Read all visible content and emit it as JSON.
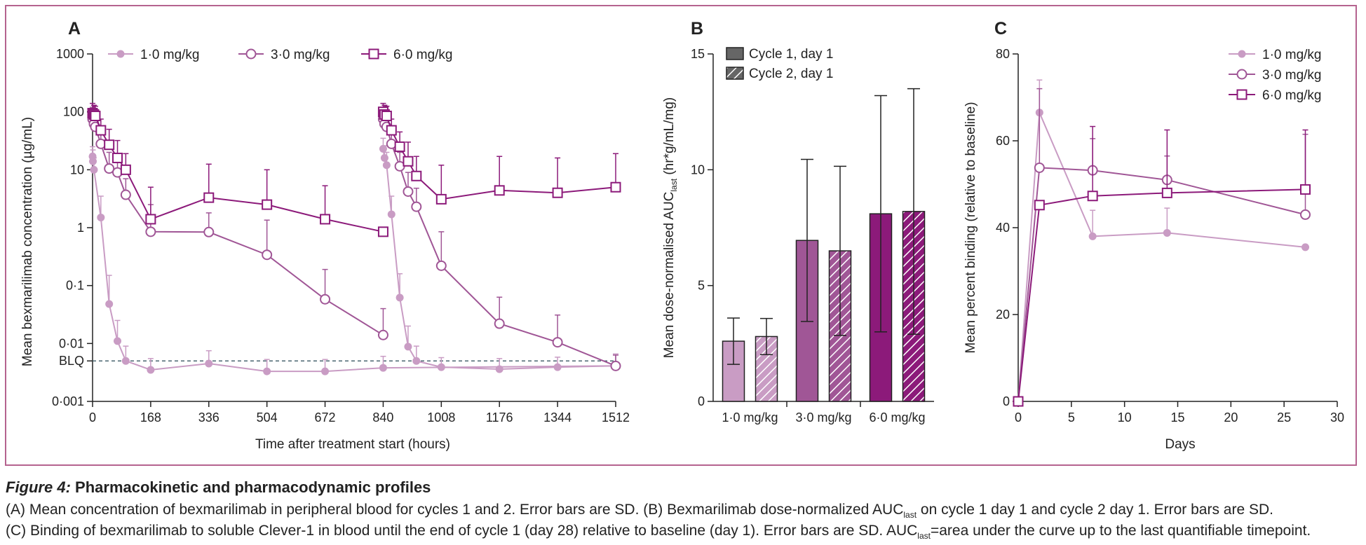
{
  "colors": {
    "light": "#c99cc4",
    "medium": "#a05696",
    "dark": "#8c1a7a",
    "frame": "#b5638f",
    "blq_line": "#4a6670",
    "text": "#222222"
  },
  "caption": {
    "figure_label": "Figure 4:",
    "figure_title": "Pharmacokinetic and pharmacodynamic profiles",
    "line1_a": "(A) Mean concentration of bexmarilimab in peripheral blood for cycles 1 and 2. Error bars are SD. (B) Bexmarilimab dose-normalized AUC",
    "line1_sub": "last",
    "line1_b": " on cycle 1 day 1 and cycle 2 day 1. Error bars are SD.",
    "line2_a": "(C) Binding of bexmarilimab to soluble Clever-1 in blood until the end of cycle 1 (day 28) relative to baseline (day 1). Error bars are SD. AUC",
    "line2_sub": "last",
    "line2_b": "=area under the curve up to the last quantifiable timepoint."
  },
  "chart_data": [
    {
      "panel": "A",
      "type": "line",
      "xlabel": "Time after treatment start (hours)",
      "ylabel": "Mean bexmarilimab concentration (µg/mL)",
      "yscale": "log",
      "xlim": [
        0,
        1512
      ],
      "ylim": [
        0.001,
        1000
      ],
      "x_ticks": [
        0,
        168,
        336,
        504,
        672,
        840,
        1008,
        1176,
        1344,
        1512
      ],
      "y_ticks": [
        {
          "value": 1000,
          "label": "1000"
        },
        {
          "value": 100,
          "label": "100"
        },
        {
          "value": 10,
          "label": "10"
        },
        {
          "value": 1,
          "label": "1"
        },
        {
          "value": 0.1,
          "label": "0·1"
        },
        {
          "value": 0.01,
          "label": "0·01"
        },
        {
          "value": 0.005,
          "label": "BLQ"
        },
        {
          "value": 0.001,
          "label": "0·001"
        }
      ],
      "x_tick_labels": [
        "0",
        "168",
        "336",
        "504",
        "672",
        "840",
        "1008",
        "1176",
        "1344",
        "1512"
      ],
      "blq_value": 0.005,
      "legend_position": "top",
      "series": [
        {
          "name": "1·0 mg/kg",
          "marker": "filled-circle",
          "color_key": "light",
          "segments": [
            [
              [
                0,
                17,
                25
              ],
              [
                1,
                14,
                22
              ],
              [
                4,
                10,
                16
              ],
              [
                24,
                1.5,
                3.5
              ],
              [
                48,
                0.048,
                0.15
              ],
              [
                72,
                0.011,
                0.025
              ],
              [
                96,
                0.005,
                0.009
              ],
              [
                168,
                0.0035,
                0.0055
              ],
              [
                336,
                0.0045,
                0.0075
              ],
              [
                504,
                0.0033,
                0.0053
              ],
              [
                672,
                0.0033,
                0.0053
              ],
              [
                840,
                0.0038,
                0.006
              ],
              [
                1512,
                0.0041,
                0.0066
              ]
            ],
            [
              [
                840,
                23,
                35
              ],
              [
                844,
                16,
                26
              ],
              [
                850,
                12,
                20
              ],
              [
                864,
                1.7,
                3.5
              ],
              [
                888,
                0.062,
                0.16
              ],
              [
                912,
                0.0088,
                0.02
              ],
              [
                936,
                0.005,
                0.009
              ],
              [
                1008,
                0.0039,
                0.0057
              ],
              [
                1176,
                0.0036,
                0.0055
              ],
              [
                1344,
                0.0039,
                0.0058
              ],
              [
                1512,
                0.0041,
                0.0066
              ]
            ]
          ]
        },
        {
          "name": "3·0 mg/kg",
          "marker": "open-circle",
          "color_key": "medium",
          "segments": [
            [
              [
                0,
                75,
                120
              ],
              [
                4,
                62,
                100
              ],
              [
                8,
                55,
                85
              ],
              [
                24,
                28,
                45
              ],
              [
                48,
                10.5,
                20
              ],
              [
                72,
                9,
                16
              ],
              [
                96,
                3.7,
                7
              ],
              [
                168,
                0.85,
                2.5
              ],
              [
                336,
                0.84,
                1.8
              ],
              [
                504,
                0.34,
                1.35
              ],
              [
                672,
                0.058,
                0.19
              ],
              [
                840,
                0.014,
                0.04
              ]
            ],
            [
              [
                840,
                75,
                120
              ],
              [
                844,
                62,
                100
              ],
              [
                850,
                55,
                85
              ],
              [
                864,
                28,
                45
              ],
              [
                888,
                11.5,
                20
              ],
              [
                912,
                4.2,
                9
              ],
              [
                936,
                2.3,
                4.8
              ],
              [
                1008,
                0.22,
                0.85
              ],
              [
                1176,
                0.022,
                0.063
              ],
              [
                1344,
                0.0105,
                0.031
              ],
              [
                1512,
                0.0041,
                0.0063
              ]
            ]
          ]
        },
        {
          "name": "6·0 mg/kg",
          "marker": "open-square",
          "color_key": "dark",
          "segments": [
            [
              [
                0,
                95,
                140
              ],
              [
                4,
                90,
                130
              ],
              [
                8,
                85,
                125
              ],
              [
                24,
                48,
                75
              ],
              [
                48,
                27,
                50
              ],
              [
                72,
                16,
                32
              ],
              [
                96,
                10,
                19
              ],
              [
                168,
                1.4,
                5
              ],
              [
                336,
                3.3,
                12.5
              ],
              [
                504,
                2.5,
                10
              ],
              [
                672,
                1.4,
                5.3
              ],
              [
                840,
                0.85,
                null
              ]
            ],
            [
              [
                840,
                100,
                140
              ],
              [
                844,
                90,
                130
              ],
              [
                850,
                85,
                125
              ],
              [
                864,
                48,
                75
              ],
              [
                888,
                25,
                45
              ],
              [
                912,
                14,
                30
              ],
              [
                936,
                7.8,
                17
              ],
              [
                1008,
                3.1,
                12
              ],
              [
                1176,
                4.4,
                17
              ],
              [
                1344,
                4.0,
                16
              ],
              [
                1512,
                5.0,
                19
              ]
            ]
          ]
        }
      ]
    },
    {
      "panel": "B",
      "type": "bar",
      "ylabel": "Mean dose-normalised AUC",
      "ylabel_sub": "last",
      "ylabel_tail": " (hr*g/mL/mg)",
      "ylim": [
        0,
        15
      ],
      "y_ticks": [
        0,
        5,
        10,
        15
      ],
      "categories": [
        "1·0 mg/kg",
        "3·0 mg/kg",
        "6·0 mg/kg"
      ],
      "legend_position": "top-left",
      "series": [
        {
          "name": "Cycle 1, day 1",
          "pattern": "solid",
          "values": [
            2.6,
            6.95,
            8.1
          ],
          "sd": [
            1.0,
            3.5,
            5.1
          ]
        },
        {
          "name": "Cycle 2, day 1",
          "pattern": "hatched",
          "values": [
            2.8,
            6.5,
            8.2
          ],
          "sd": [
            0.78,
            3.65,
            5.3
          ]
        }
      ],
      "bar_color_keys": [
        "light",
        "medium",
        "dark"
      ]
    },
    {
      "panel": "C",
      "type": "line",
      "xlabel": "Days",
      "ylabel": "Mean percent binding (relative to baseline)",
      "xlim": [
        0,
        30
      ],
      "ylim": [
        0,
        80
      ],
      "x_ticks": [
        0,
        5,
        10,
        15,
        20,
        25,
        30
      ],
      "y_ticks": [
        0,
        20,
        40,
        60,
        80
      ],
      "legend_position": "top-right",
      "series": [
        {
          "name": "1·0 mg/kg",
          "marker": "filled-circle",
          "color_key": "light",
          "points": [
            [
              0,
              0,
              null
            ],
            [
              2,
              66.5,
              74
            ],
            [
              7,
              38,
              44
            ],
            [
              14,
              38.8,
              44.5
            ],
            [
              27,
              35.5,
              null
            ]
          ]
        },
        {
          "name": "3·0 mg/kg",
          "marker": "open-circle",
          "color_key": "medium",
          "points": [
            [
              0,
              0,
              null
            ],
            [
              2,
              53.8,
              72
            ],
            [
              7,
              53.2,
              60.5
            ],
            [
              14,
              51,
              56.5
            ],
            [
              27,
              43,
              61.5
            ]
          ]
        },
        {
          "name": "6·0 mg/kg",
          "marker": "open-square",
          "color_key": "dark",
          "points": [
            [
              0,
              0,
              null
            ],
            [
              2,
              45.2,
              null
            ],
            [
              7,
              47.3,
              63.3
            ],
            [
              14,
              48,
              62.5
            ],
            [
              27,
              48.8,
              62.5
            ]
          ]
        }
      ]
    }
  ]
}
